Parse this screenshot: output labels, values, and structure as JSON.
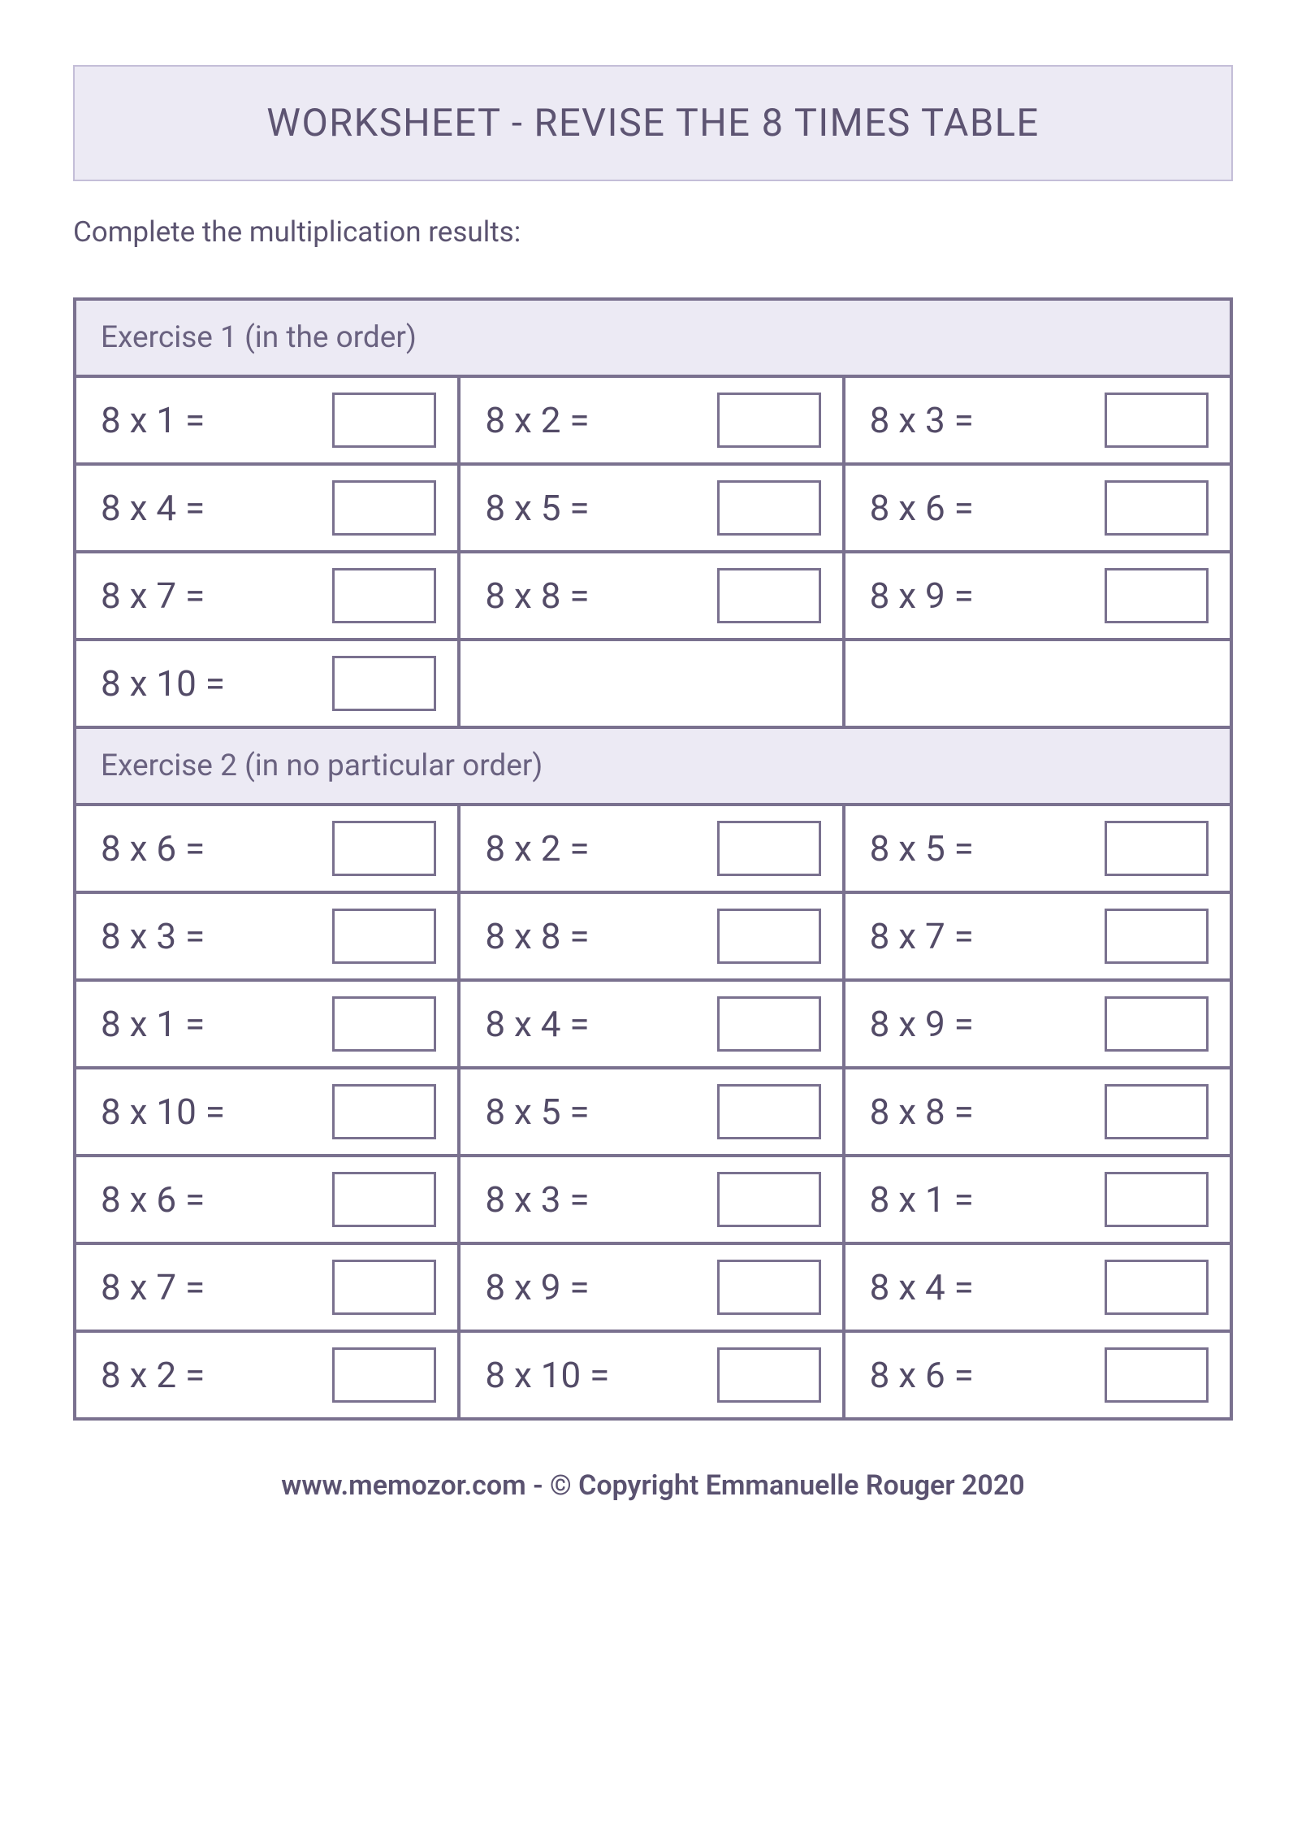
{
  "title": "WORKSHEET - REVISE THE 8 TIMES TABLE",
  "instructions": "Complete the multiplication results:",
  "colors": {
    "header_bg": "#eceaf4",
    "header_border": "#c4bed8",
    "table_border": "#7a718f",
    "text_primary": "#5d5472",
    "text_body": "#5b5370",
    "cell_text": "#534b67",
    "page_bg": "#ffffff"
  },
  "typography": {
    "title_fontsize": 47,
    "instructions_fontsize": 35,
    "ex_header_fontsize": 37,
    "cell_fontsize": 44,
    "footer_fontsize": 34
  },
  "layout": {
    "columns_per_row": 3,
    "answer_box_width": 128,
    "answer_box_height": 68,
    "border_width": 4
  },
  "exercises": [
    {
      "label": "Exercise 1 (in the order)",
      "cells": [
        {
          "text": "8 x 1 =",
          "box": true
        },
        {
          "text": "8 x 2 =",
          "box": true
        },
        {
          "text": "8 x 3 =",
          "box": true
        },
        {
          "text": "8 x 4 =",
          "box": true
        },
        {
          "text": "8 x 5 =",
          "box": true
        },
        {
          "text": "8 x 6 =",
          "box": true
        },
        {
          "text": "8 x 7 =",
          "box": true
        },
        {
          "text": "8 x 8 =",
          "box": true
        },
        {
          "text": "8 x 9 =",
          "box": true
        },
        {
          "text": "8 x 10 =",
          "box": true
        },
        {
          "text": "",
          "box": false
        },
        {
          "text": "",
          "box": false
        }
      ]
    },
    {
      "label": "Exercise 2 (in no particular order)",
      "cells": [
        {
          "text": "8 x 6 =",
          "box": true
        },
        {
          "text": "8 x 2 =",
          "box": true
        },
        {
          "text": "8 x 5 =",
          "box": true
        },
        {
          "text": "8 x 3 =",
          "box": true
        },
        {
          "text": "8 x 8 =",
          "box": true
        },
        {
          "text": "8 x 7 =",
          "box": true
        },
        {
          "text": "8 x 1 =",
          "box": true
        },
        {
          "text": "8 x 4 =",
          "box": true
        },
        {
          "text": "8 x 9 =",
          "box": true
        },
        {
          "text": "8 x 10 =",
          "box": true
        },
        {
          "text": "8 x 5 =",
          "box": true
        },
        {
          "text": "8 x 8 =",
          "box": true
        },
        {
          "text": "8 x 6 =",
          "box": true
        },
        {
          "text": "8 x 3 =",
          "box": true
        },
        {
          "text": "8 x 1 =",
          "box": true
        },
        {
          "text": "8 x 7 =",
          "box": true
        },
        {
          "text": "8 x 9 =",
          "box": true
        },
        {
          "text": "8 x 4 =",
          "box": true
        },
        {
          "text": "8 x 2 =",
          "box": true
        },
        {
          "text": "8 x 10 =",
          "box": true
        },
        {
          "text": "8 x 6 =",
          "box": true
        }
      ]
    }
  ],
  "footer": "www.memozor.com - © Copyright Emmanuelle Rouger 2020"
}
